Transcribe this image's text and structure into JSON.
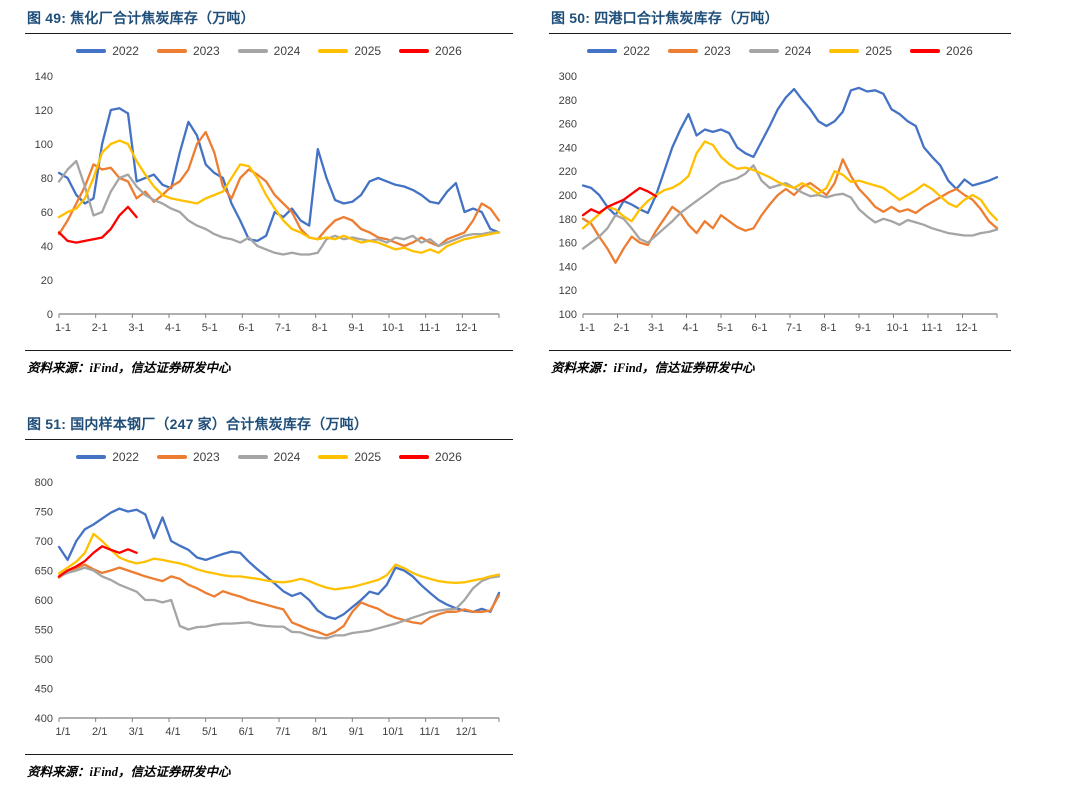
{
  "source": {
    "label": "资料来源：",
    "text": "iFind，信达证券研发中心"
  },
  "colors": {
    "title": "#1f4e79",
    "axis_line": "#808080",
    "axis_text": "#404040",
    "year_2022": "#4472C4",
    "year_2023": "#ED7D31",
    "year_2024": "#A5A5A5",
    "year_2025": "#FFC000",
    "year_2026": "#FF0000"
  },
  "chart_data": [
    {
      "id": "figure-49",
      "type": "line",
      "title": "图 49: 焦化厂合计焦炭库存（万吨）",
      "ylabel": "",
      "xlabel": "",
      "ylim": [
        0,
        140
      ],
      "yticks": [
        0,
        20,
        40,
        60,
        80,
        100,
        120,
        140
      ],
      "xtick_labels": [
        "1-1",
        "2-1",
        "3-1",
        "4-1",
        "5-1",
        "6-1",
        "7-1",
        "8-1",
        "9-1",
        "10-1",
        "11-1",
        "12-1"
      ],
      "grid": false,
      "legend_position": "top",
      "points_per_year": 52,
      "series": [
        {
          "name": "2022",
          "color": "#4472C4",
          "values": [
            83,
            80,
            70,
            65,
            68,
            100,
            120,
            121,
            118,
            78,
            80,
            82,
            76,
            74,
            95,
            113,
            105,
            88,
            83,
            80,
            65,
            55,
            44,
            43,
            46,
            60,
            57,
            62,
            55,
            52,
            97,
            80,
            67,
            65,
            66,
            70,
            78,
            80,
            78,
            76,
            75,
            73,
            70,
            66,
            65,
            72,
            77,
            60,
            62,
            60,
            50,
            48
          ]
        },
        {
          "name": "2023",
          "color": "#ED7D31",
          "values": [
            47,
            55,
            65,
            75,
            88,
            85,
            86,
            80,
            78,
            68,
            72,
            66,
            70,
            75,
            78,
            85,
            100,
            107,
            95,
            75,
            68,
            80,
            85,
            82,
            78,
            70,
            65,
            60,
            50,
            45,
            44,
            50,
            55,
            57,
            55,
            50,
            48,
            45,
            44,
            42,
            40,
            42,
            45,
            42,
            40,
            44,
            46,
            48,
            55,
            65,
            62,
            55
          ]
        },
        {
          "name": "2024",
          "color": "#A5A5A5",
          "values": [
            78,
            85,
            90,
            75,
            58,
            60,
            72,
            80,
            82,
            75,
            70,
            67,
            65,
            62,
            60,
            55,
            52,
            50,
            47,
            45,
            44,
            42,
            45,
            40,
            38,
            36,
            35,
            36,
            35,
            35,
            36,
            44,
            46,
            44,
            45,
            44,
            43,
            44,
            42,
            45,
            44,
            46,
            42,
            44,
            40,
            42,
            44,
            46,
            47,
            47,
            48,
            48
          ]
        },
        {
          "name": "2025",
          "color": "#FFC000",
          "values": [
            57,
            60,
            62,
            68,
            80,
            95,
            100,
            102,
            100,
            90,
            82,
            75,
            70,
            68,
            67,
            66,
            65,
            68,
            70,
            72,
            80,
            88,
            87,
            80,
            70,
            62,
            55,
            50,
            48,
            45,
            44,
            45,
            44,
            46,
            44,
            42,
            43,
            42,
            40,
            38,
            39,
            37,
            36,
            38,
            36,
            40,
            42,
            44,
            45,
            46,
            47,
            48
          ]
        },
        {
          "name": "2026",
          "color": "#FF0000",
          "values": [
            48,
            43,
            42,
            43,
            44,
            45,
            50,
            58,
            63,
            57
          ]
        }
      ]
    },
    {
      "id": "figure-50",
      "type": "line",
      "title": "图 50: 四港口合计焦炭库存（万吨）",
      "ylabel": "",
      "xlabel": "",
      "ylim": [
        100,
        300
      ],
      "yticks": [
        100,
        120,
        140,
        160,
        180,
        200,
        220,
        240,
        260,
        280,
        300
      ],
      "xtick_labels": [
        "1-1",
        "2-1",
        "3-1",
        "4-1",
        "5-1",
        "6-1",
        "7-1",
        "8-1",
        "9-1",
        "10-1",
        "11-1",
        "12-1"
      ],
      "grid": false,
      "legend_position": "top",
      "points_per_year": 52,
      "series": [
        {
          "name": "2022",
          "color": "#4472C4",
          "values": [
            208,
            206,
            200,
            190,
            183,
            195,
            192,
            188,
            185,
            200,
            220,
            240,
            255,
            268,
            250,
            255,
            253,
            255,
            252,
            240,
            235,
            232,
            245,
            258,
            272,
            282,
            289,
            280,
            272,
            262,
            258,
            262,
            270,
            288,
            290,
            287,
            288,
            285,
            272,
            268,
            262,
            258,
            240,
            232,
            225,
            212,
            205,
            213,
            208,
            210,
            212,
            215
          ]
        },
        {
          "name": "2023",
          "color": "#ED7D31",
          "values": [
            180,
            176,
            165,
            155,
            143,
            155,
            165,
            160,
            158,
            170,
            180,
            190,
            185,
            175,
            168,
            178,
            172,
            183,
            178,
            173,
            170,
            172,
            183,
            192,
            200,
            205,
            200,
            207,
            210,
            205,
            200,
            210,
            230,
            216,
            205,
            198,
            190,
            186,
            190,
            186,
            188,
            185,
            190,
            194,
            198,
            202,
            205,
            200,
            196,
            188,
            178,
            172
          ]
        },
        {
          "name": "2024",
          "color": "#A5A5A5",
          "values": [
            155,
            160,
            165,
            172,
            183,
            180,
            172,
            163,
            160,
            166,
            172,
            178,
            185,
            190,
            195,
            200,
            205,
            210,
            212,
            214,
            218,
            225,
            212,
            206,
            208,
            210,
            206,
            202,
            199,
            200,
            198,
            200,
            201,
            198,
            188,
            182,
            177,
            180,
            178,
            175,
            179,
            177,
            175,
            172,
            170,
            168,
            167,
            166,
            166,
            168,
            169,
            171
          ]
        },
        {
          "name": "2025",
          "color": "#FFC000",
          "values": [
            172,
            178,
            184,
            190,
            188,
            182,
            178,
            188,
            195,
            200,
            204,
            206,
            210,
            216,
            235,
            245,
            242,
            232,
            226,
            222,
            223,
            221,
            218,
            215,
            211,
            208,
            206,
            210,
            206,
            201,
            206,
            220,
            217,
            211,
            212,
            210,
            208,
            206,
            201,
            196,
            200,
            204,
            209,
            205,
            199,
            193,
            190,
            196,
            200,
            196,
            186,
            179
          ]
        },
        {
          "name": "2026",
          "color": "#FF0000",
          "values": [
            183,
            188,
            185,
            190,
            193,
            196,
            201,
            206,
            203,
            199
          ]
        }
      ]
    },
    {
      "id": "figure-51",
      "type": "line",
      "title": "图 51: 国内样本钢厂（247 家）合计焦炭库存（万吨）",
      "ylabel": "",
      "xlabel": "",
      "ylim": [
        400,
        800
      ],
      "yticks": [
        400,
        450,
        500,
        550,
        600,
        650,
        700,
        750,
        800
      ],
      "xtick_labels": [
        "1/1",
        "2/1",
        "3/1",
        "4/1",
        "5/1",
        "6/1",
        "7/1",
        "8/1",
        "9/1",
        "10/1",
        "11/1",
        "12/1"
      ],
      "grid": false,
      "legend_position": "top",
      "points_per_year": 52,
      "series": [
        {
          "name": "2022",
          "color": "#4472C4",
          "values": [
            690,
            668,
            700,
            720,
            728,
            738,
            748,
            755,
            750,
            753,
            745,
            705,
            740,
            700,
            692,
            685,
            672,
            668,
            673,
            678,
            682,
            680,
            665,
            652,
            640,
            628,
            615,
            607,
            612,
            600,
            582,
            572,
            568,
            576,
            588,
            600,
            614,
            610,
            626,
            655,
            650,
            640,
            625,
            612,
            600,
            592,
            586,
            582,
            580,
            585,
            580,
            612
          ]
        },
        {
          "name": "2023",
          "color": "#ED7D31",
          "values": [
            638,
            648,
            654,
            660,
            652,
            646,
            650,
            655,
            650,
            645,
            640,
            636,
            632,
            640,
            636,
            626,
            620,
            612,
            606,
            615,
            610,
            606,
            600,
            596,
            592,
            588,
            584,
            562,
            556,
            550,
            546,
            540,
            546,
            556,
            580,
            596,
            590,
            585,
            576,
            570,
            566,
            562,
            560,
            570,
            576,
            580,
            580,
            584,
            580,
            580,
            582,
            608
          ]
        },
        {
          "name": "2024",
          "color": "#A5A5A5",
          "values": [
            640,
            646,
            650,
            655,
            650,
            640,
            634,
            626,
            620,
            614,
            600,
            600,
            596,
            600,
            556,
            550,
            554,
            555,
            558,
            560,
            560,
            561,
            562,
            558,
            556,
            555,
            555,
            546,
            545,
            540,
            536,
            535,
            540,
            540,
            544,
            546,
            548,
            552,
            556,
            560,
            565,
            570,
            575,
            580,
            582,
            584,
            585,
            600,
            620,
            632,
            638,
            640
          ]
        },
        {
          "name": "2025",
          "color": "#FFC000",
          "values": [
            645,
            655,
            665,
            680,
            712,
            700,
            685,
            672,
            666,
            662,
            665,
            670,
            668,
            665,
            662,
            658,
            652,
            648,
            645,
            642,
            640,
            640,
            638,
            636,
            633,
            631,
            630,
            632,
            636,
            632,
            626,
            621,
            618,
            620,
            622,
            626,
            630,
            634,
            642,
            660,
            654,
            646,
            640,
            636,
            632,
            630,
            629,
            630,
            633,
            636,
            640,
            643
          ]
        },
        {
          "name": "2026",
          "color": "#FF0000",
          "values": [
            640,
            650,
            657,
            666,
            680,
            691,
            685,
            680,
            686,
            680
          ]
        }
      ]
    }
  ]
}
